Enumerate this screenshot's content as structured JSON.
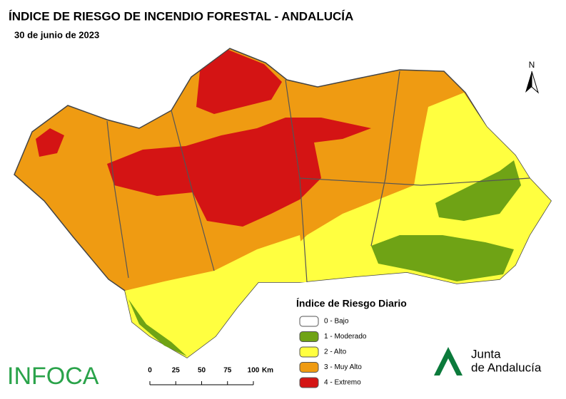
{
  "header": {
    "title": "ÍNDICE DE RIESGO DE INCENDIO FORESTAL - ANDALUCÍA",
    "date": "30 de junio de 2023"
  },
  "north": "N",
  "legend": {
    "title": "Índice de Riesgo Diario",
    "items": [
      {
        "label": "0 - Bajo",
        "color": "#ffffff"
      },
      {
        "label": "1 - Moderado",
        "color": "#6fa315"
      },
      {
        "label": "2 - Alto",
        "color": "#ffff40"
      },
      {
        "label": "3 - Muy Alto",
        "color": "#ef9b12"
      },
      {
        "label": "4 - Extremo",
        "color": "#d41414"
      }
    ]
  },
  "scale": {
    "ticks": [
      "0",
      "25",
      "50",
      "75",
      "100"
    ],
    "unit": "Km"
  },
  "logos": {
    "infoca": "INFOCA",
    "junta_line1": "Junta",
    "junta_line2": "de Andalucía"
  }
}
